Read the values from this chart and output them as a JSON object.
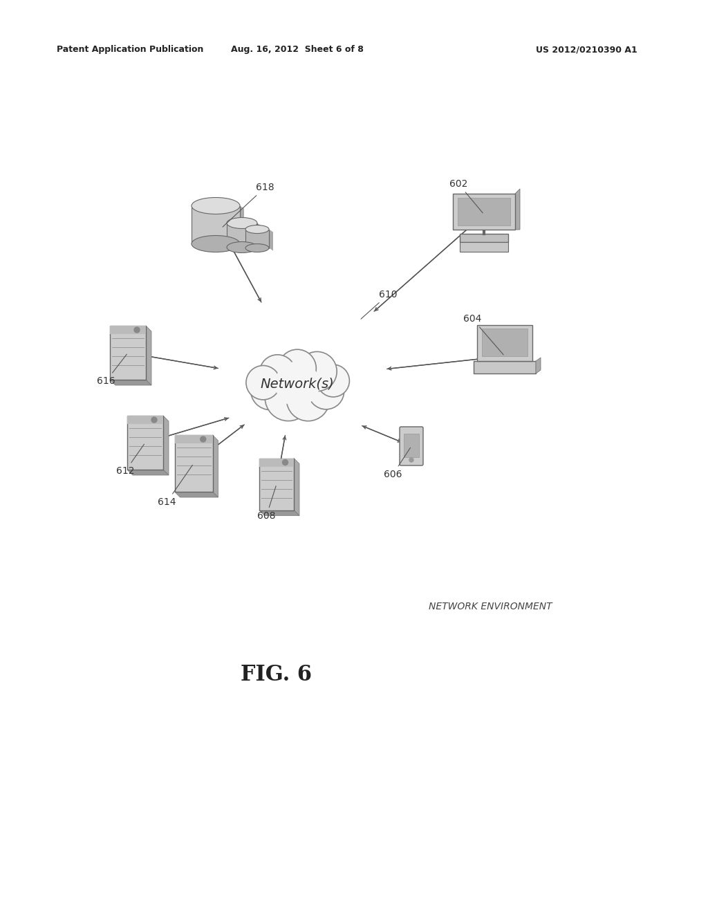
{
  "title": "FIG. 6",
  "subtitle": "NETWORK ENVIRONMENT",
  "header_left": "Patent Application Publication",
  "header_center": "Aug. 16, 2012  Sheet 6 of 8",
  "header_right": "US 2012/0210390 A1",
  "background_color": "#ffffff",
  "network_label": "Network(s)",
  "network_label_id": "610",
  "text_color": "#333333",
  "line_color": "#555555"
}
